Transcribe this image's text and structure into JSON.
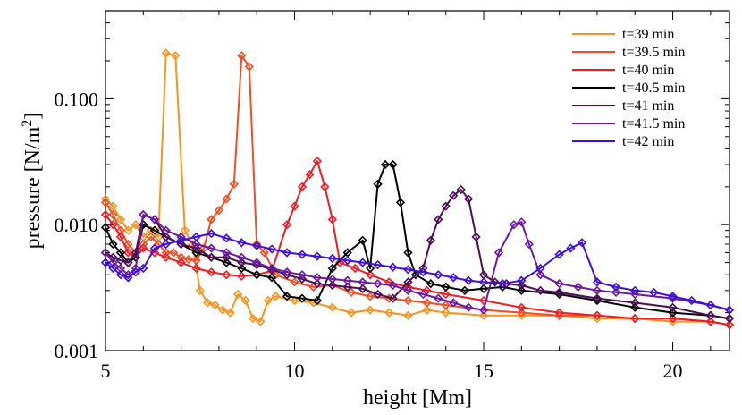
{
  "chart_data": {
    "type": "line",
    "xlabel": "height [Mm]",
    "ylabel_main": "pressure [N/m",
    "ylabel_sup": "2",
    "ylabel_tail": "]",
    "xlim": [
      5,
      21.5
    ],
    "ylim": [
      0.001,
      0.5
    ],
    "yscale": "log",
    "grid": false,
    "legend_position": "top-right",
    "marker": "diamond",
    "x_ticks": [
      5,
      10,
      15,
      20
    ],
    "x_tick_labels": [
      "5",
      "10",
      "15",
      "20"
    ],
    "y_ticks": [
      0.001,
      0.01,
      0.1
    ],
    "y_tick_labels": [
      "0.001",
      "0.010",
      "0.100"
    ],
    "series": [
      {
        "name": "t=39 min",
        "color": "#f7941d",
        "x": [
          5.0,
          5.2,
          5.4,
          5.6,
          5.8,
          6.0,
          6.2,
          6.4,
          6.6,
          6.85,
          7.1,
          7.3,
          7.5,
          7.7,
          7.9,
          8.1,
          8.3,
          8.5,
          8.7,
          8.9,
          9.1,
          9.3,
          9.5,
          10.0,
          10.5,
          11.0,
          11.5,
          12.0,
          12.5,
          13.0,
          13.5,
          14.0,
          15.0,
          16.0,
          17.0,
          18.0,
          19.0,
          20.0,
          21.0,
          21.5
        ],
        "y": [
          0.016,
          0.014,
          0.011,
          0.009,
          0.01,
          0.008,
          0.009,
          0.008,
          0.23,
          0.22,
          0.009,
          0.007,
          0.003,
          0.0024,
          0.0023,
          0.0021,
          0.002,
          0.0028,
          0.0025,
          0.0018,
          0.0017,
          0.0025,
          0.0027,
          0.0025,
          0.0024,
          0.0022,
          0.002,
          0.0021,
          0.002,
          0.0019,
          0.0021,
          0.002,
          0.0019,
          0.0019,
          0.0019,
          0.0018,
          0.0018,
          0.0017,
          0.0017,
          0.0016
        ]
      },
      {
        "name": "t=39.5 min",
        "color": "#f04e23",
        "x": [
          5.0,
          5.2,
          5.4,
          5.6,
          5.8,
          6.0,
          6.2,
          6.4,
          6.6,
          6.8,
          7.0,
          7.2,
          7.4,
          7.6,
          7.8,
          8.0,
          8.2,
          8.4,
          8.6,
          8.8,
          9.0,
          9.2,
          9.5,
          10.0,
          10.5,
          11.0,
          11.5,
          12.0,
          12.5,
          13.0,
          13.5,
          14.0,
          15.0,
          16.0,
          17.0,
          18.0,
          19.0,
          20.0,
          21.0,
          21.5
        ],
        "y": [
          0.015,
          0.012,
          0.009,
          0.007,
          0.006,
          0.007,
          0.008,
          0.007,
          0.006,
          0.006,
          0.0055,
          0.0053,
          0.0052,
          0.0065,
          0.011,
          0.013,
          0.016,
          0.021,
          0.22,
          0.18,
          0.007,
          0.006,
          0.004,
          0.0035,
          0.0032,
          0.0033,
          0.0029,
          0.0027,
          0.0026,
          0.0025,
          0.0024,
          0.0023,
          0.0021,
          0.002,
          0.0019,
          0.0019,
          0.0018,
          0.0018,
          0.0017,
          0.0016
        ]
      },
      {
        "name": "t=40 min",
        "color": "#ee1c24",
        "x": [
          5.0,
          5.2,
          5.4,
          5.6,
          5.8,
          6.0,
          6.3,
          6.6,
          7.0,
          7.4,
          7.8,
          8.2,
          8.6,
          9.0,
          9.4,
          9.8,
          10.0,
          10.2,
          10.4,
          10.6,
          10.8,
          11.0,
          11.2,
          11.6,
          12.0,
          12.5,
          13.0,
          13.5,
          14.0,
          15.0,
          16.0,
          17.0,
          18.0,
          19.0,
          20.0,
          21.0,
          21.5
        ],
        "y": [
          0.012,
          0.01,
          0.008,
          0.006,
          0.0055,
          0.0065,
          0.006,
          0.0055,
          0.005,
          0.0045,
          0.0042,
          0.004,
          0.0039,
          0.004,
          0.0043,
          0.01,
          0.014,
          0.02,
          0.025,
          0.032,
          0.02,
          0.011,
          0.005,
          0.0045,
          0.004,
          0.0035,
          0.0032,
          0.003,
          0.0028,
          0.0025,
          0.0022,
          0.002,
          0.0019,
          0.0018,
          0.0018,
          0.0017,
          0.0016
        ]
      },
      {
        "name": "t=40.5 min",
        "color": "#000000",
        "x": [
          5.0,
          5.2,
          5.4,
          5.6,
          5.8,
          6.0,
          6.3,
          6.6,
          7.0,
          7.4,
          7.8,
          8.2,
          8.6,
          9.0,
          9.4,
          9.8,
          10.2,
          10.6,
          11.0,
          11.4,
          11.8,
          12.0,
          12.2,
          12.4,
          12.6,
          12.8,
          13.0,
          13.2,
          13.6,
          14.0,
          14.5,
          15.0,
          15.5,
          16.0,
          17.0,
          18.0,
          19.0,
          20.0,
          21.0,
          21.5
        ],
        "y": [
          0.0095,
          0.007,
          0.006,
          0.005,
          0.0055,
          0.01,
          0.009,
          0.008,
          0.007,
          0.006,
          0.0055,
          0.005,
          0.0045,
          0.004,
          0.0038,
          0.0027,
          0.0026,
          0.0025,
          0.0045,
          0.006,
          0.0075,
          0.0045,
          0.021,
          0.03,
          0.03,
          0.015,
          0.006,
          0.004,
          0.0034,
          0.0032,
          0.003,
          0.0031,
          0.0032,
          0.003,
          0.0028,
          0.0025,
          0.0022,
          0.002,
          0.0019,
          0.0018
        ]
      },
      {
        "name": "t=41 min",
        "color": "#4b0f54",
        "x": [
          5.0,
          5.2,
          5.4,
          5.6,
          5.8,
          6.0,
          6.3,
          6.6,
          7.0,
          7.4,
          7.8,
          8.2,
          8.6,
          9.0,
          9.4,
          9.8,
          10.2,
          10.6,
          11.0,
          11.4,
          11.8,
          12.2,
          12.6,
          13.0,
          13.4,
          13.6,
          13.8,
          14.0,
          14.2,
          14.4,
          14.6,
          14.8,
          15.0,
          15.3,
          15.6,
          16.0,
          16.5,
          17.0,
          18.0,
          19.0,
          20.0,
          21.0,
          21.5
        ],
        "y": [
          0.006,
          0.0055,
          0.0052,
          0.005,
          0.006,
          0.012,
          0.011,
          0.008,
          0.007,
          0.0065,
          0.0055,
          0.0055,
          0.005,
          0.0048,
          0.0044,
          0.004,
          0.0037,
          0.0034,
          0.0033,
          0.0032,
          0.0031,
          0.0028,
          0.0026,
          0.0035,
          0.0045,
          0.0075,
          0.011,
          0.014,
          0.017,
          0.019,
          0.016,
          0.008,
          0.004,
          0.0035,
          0.0034,
          0.0033,
          0.003,
          0.0029,
          0.0026,
          0.0024,
          0.0022,
          0.0019,
          0.0018
        ]
      },
      {
        "name": "t=41.5 min",
        "color": "#6b1aa0",
        "x": [
          5.0,
          5.2,
          5.4,
          5.6,
          5.8,
          6.0,
          6.3,
          6.6,
          7.0,
          7.4,
          7.8,
          8.2,
          8.6,
          9.0,
          9.4,
          9.8,
          10.2,
          10.6,
          11.0,
          11.4,
          11.8,
          12.2,
          12.6,
          13.0,
          13.4,
          13.8,
          14.2,
          14.6,
          15.0,
          15.4,
          15.8,
          16.0,
          16.2,
          16.5,
          17.0,
          17.5,
          18.0,
          18.5,
          19.0,
          20.0,
          21.0,
          21.5
        ],
        "y": [
          0.006,
          0.005,
          0.0045,
          0.004,
          0.0045,
          0.012,
          0.011,
          0.009,
          0.008,
          0.007,
          0.0065,
          0.006,
          0.0055,
          0.005,
          0.0045,
          0.0042,
          0.004,
          0.0038,
          0.0037,
          0.0036,
          0.0035,
          0.0034,
          0.0033,
          0.003,
          0.0028,
          0.0026,
          0.0024,
          0.0022,
          0.0021,
          0.006,
          0.01,
          0.0105,
          0.007,
          0.004,
          0.0034,
          0.0032,
          0.003,
          0.0029,
          0.0028,
          0.0026,
          0.0023,
          0.0021
        ]
      },
      {
        "name": "t=42 min",
        "color": "#3f0fd6",
        "x": [
          5.0,
          5.2,
          5.4,
          5.6,
          5.8,
          6.0,
          6.3,
          6.6,
          7.0,
          7.4,
          7.8,
          8.2,
          8.6,
          9.0,
          9.4,
          9.8,
          10.2,
          10.6,
          11.0,
          11.4,
          11.8,
          12.2,
          12.6,
          13.0,
          13.4,
          13.8,
          14.2,
          14.6,
          15.0,
          15.5,
          16.0,
          16.5,
          17.0,
          17.3,
          17.6,
          18.0,
          18.5,
          19.0,
          19.5,
          20.0,
          20.5,
          21.0,
          21.5
        ],
        "y": [
          0.005,
          0.0045,
          0.004,
          0.0038,
          0.0042,
          0.0045,
          0.0065,
          0.007,
          0.0075,
          0.008,
          0.0085,
          0.0078,
          0.0072,
          0.0068,
          0.0064,
          0.006,
          0.0058,
          0.0056,
          0.0054,
          0.0052,
          0.005,
          0.0048,
          0.0046,
          0.0044,
          0.0042,
          0.004,
          0.0038,
          0.0036,
          0.0035,
          0.0034,
          0.0036,
          0.0045,
          0.0058,
          0.0065,
          0.0072,
          0.0035,
          0.0032,
          0.003,
          0.0029,
          0.0027,
          0.0025,
          0.0023,
          0.0021
        ]
      }
    ]
  }
}
